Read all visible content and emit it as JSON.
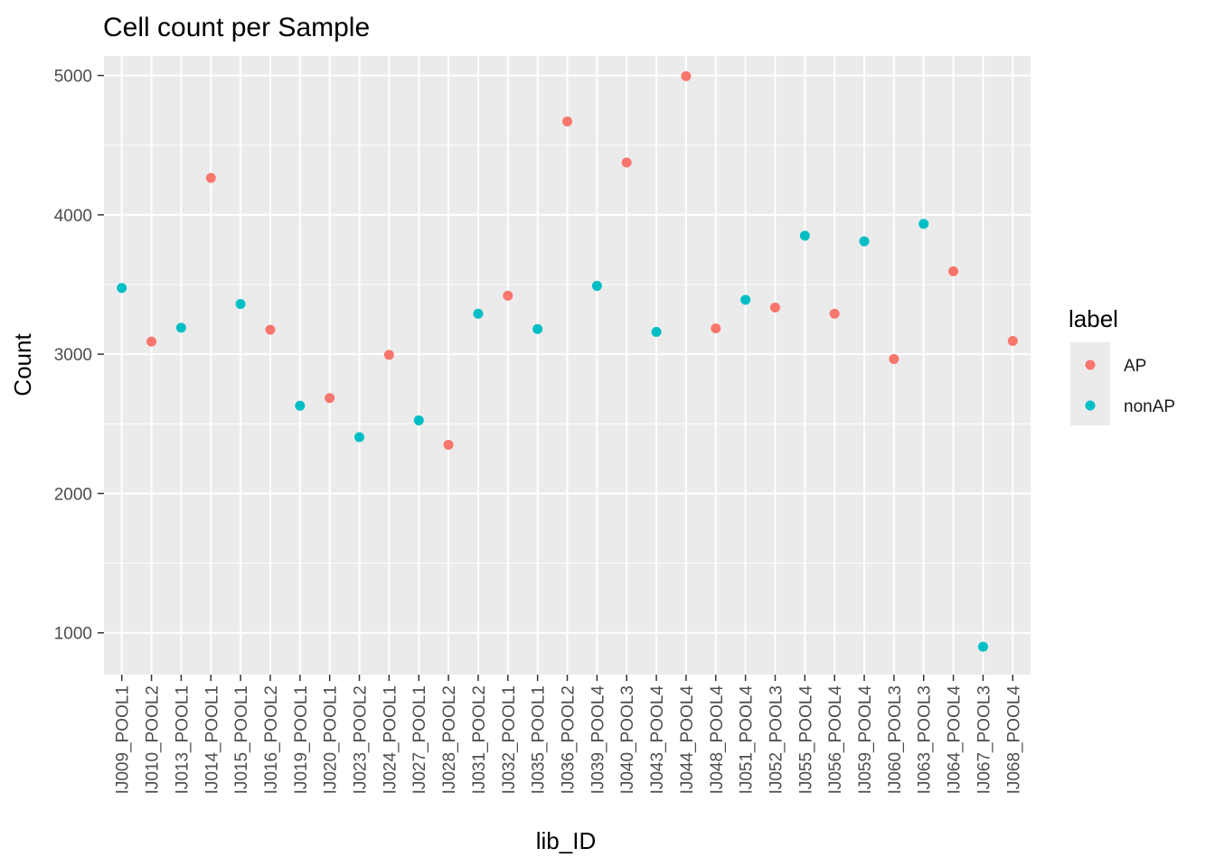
{
  "chart_data": {
    "type": "scatter",
    "title": "Cell count per Sample",
    "xlabel": "lib_ID",
    "ylabel": "Count",
    "ylim": [
      700,
      5140
    ],
    "yticks": [
      1000,
      2000,
      3000,
      4000,
      5000
    ],
    "grid": true,
    "legend": {
      "title": "label",
      "position": "right",
      "entries": [
        {
          "name": "AP",
          "color": "#F8766D"
        },
        {
          "name": "nonAP",
          "color": "#00BFC4"
        }
      ]
    },
    "categories": [
      "IJ009_POOL1",
      "IJ010_POOL2",
      "IJ013_POOL1",
      "IJ014_POOL1",
      "IJ015_POOL1",
      "IJ016_POOL2",
      "IJ019_POOL1",
      "IJ020_POOL1",
      "IJ023_POOL2",
      "IJ024_POOL1",
      "IJ027_POOL1",
      "IJ028_POOL2",
      "IJ031_POOL2",
      "IJ032_POOL1",
      "IJ035_POOL1",
      "IJ036_POOL2",
      "IJ039_POOL4",
      "IJ040_POOL3",
      "IJ043_POOL4",
      "IJ044_POOL4",
      "IJ048_POOL4",
      "IJ051_POOL4",
      "IJ052_POOL3",
      "IJ055_POOL4",
      "IJ056_POOL4",
      "IJ059_POOL4",
      "IJ060_POOL3",
      "IJ063_POOL3",
      "IJ064_POOL4",
      "IJ067_POOL3",
      "IJ068_POOL4"
    ],
    "values": [
      3475,
      3090,
      3190,
      4265,
      3360,
      3175,
      2630,
      2685,
      2405,
      2995,
      2525,
      2350,
      3290,
      3420,
      3180,
      4670,
      3490,
      4375,
      3160,
      4995,
      3185,
      3390,
      3335,
      3850,
      3290,
      3810,
      2965,
      3935,
      3595,
      900,
      3095
    ],
    "labels": [
      "nonAP",
      "AP",
      "nonAP",
      "AP",
      "nonAP",
      "AP",
      "nonAP",
      "AP",
      "nonAP",
      "AP",
      "nonAP",
      "AP",
      "nonAP",
      "AP",
      "nonAP",
      "AP",
      "nonAP",
      "AP",
      "nonAP",
      "AP",
      "AP",
      "nonAP",
      "AP",
      "nonAP",
      "AP",
      "nonAP",
      "AP",
      "nonAP",
      "AP",
      "nonAP",
      "AP"
    ]
  }
}
